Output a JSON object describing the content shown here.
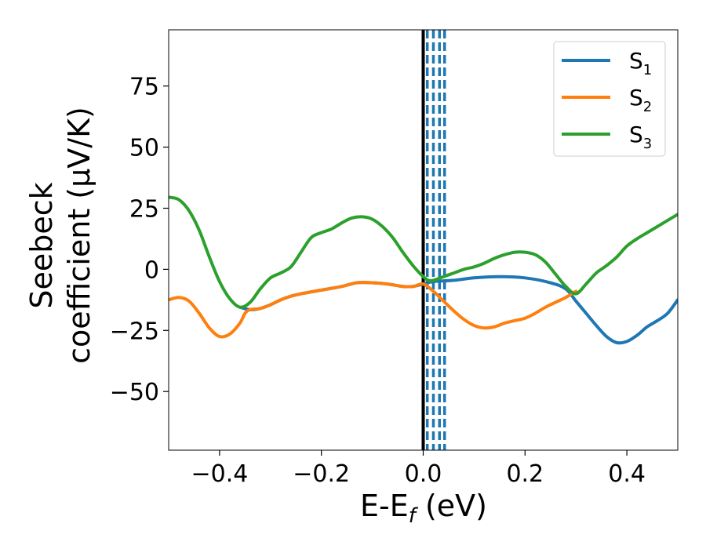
{
  "chart_data": {
    "type": "line",
    "xlabel_main": "E-E",
    "xlabel_sub": "f",
    "xlabel_unit": " (eV)",
    "ylabel_line1": "Seebeck",
    "ylabel_line2": "coefficient  (μV/K)",
    "xlim": [
      -0.5,
      0.5
    ],
    "ylim": [
      -74,
      98
    ],
    "xticks": [
      -0.4,
      -0.2,
      0.0,
      0.2,
      0.4
    ],
    "xtick_labels": [
      "−0.4",
      "−0.2",
      "0.0",
      "0.2",
      "0.4"
    ],
    "yticks": [
      -50,
      -25,
      0,
      25,
      50,
      75
    ],
    "ytick_labels": [
      "−50",
      "−25",
      "0",
      "25",
      "50",
      "75"
    ],
    "grid": false,
    "legend_position": "top-right",
    "fermi_line": {
      "x": 0.0,
      "color": "#000000"
    },
    "dashed_lines": {
      "x": [
        0.008,
        0.02,
        0.032,
        0.042
      ],
      "color": "#1f77b4"
    },
    "series": [
      {
        "name": "S",
        "sub": "1",
        "color": "#1f77b4",
        "points": [
          [
            -0.36,
            -15.5
          ],
          [
            -0.34,
            -16.5
          ],
          [
            -0.32,
            -16
          ],
          [
            -0.3,
            -14.5
          ],
          [
            -0.28,
            -12.5
          ],
          [
            -0.26,
            -11
          ],
          [
            -0.24,
            -10
          ],
          [
            -0.2,
            -8.5
          ],
          [
            -0.16,
            -7
          ],
          [
            -0.13,
            -5.5
          ],
          [
            -0.1,
            -5.5
          ],
          [
            -0.07,
            -6
          ],
          [
            -0.04,
            -7
          ],
          [
            -0.02,
            -7
          ],
          [
            0.0,
            -6
          ],
          [
            0.02,
            -5
          ],
          [
            0.06,
            -4.5
          ],
          [
            0.1,
            -3.5
          ],
          [
            0.15,
            -3
          ],
          [
            0.2,
            -3.5
          ],
          [
            0.25,
            -5.5
          ],
          [
            0.28,
            -8
          ],
          [
            0.3,
            -13
          ],
          [
            0.32,
            -18
          ],
          [
            0.34,
            -23
          ],
          [
            0.36,
            -27.5
          ],
          [
            0.38,
            -30
          ],
          [
            0.4,
            -29.5
          ],
          [
            0.42,
            -27
          ],
          [
            0.44,
            -23.5
          ],
          [
            0.46,
            -21
          ],
          [
            0.48,
            -18
          ],
          [
            0.5,
            -12.5
          ]
        ]
      },
      {
        "name": "S",
        "sub": "2",
        "color": "#ff7f0e",
        "points": [
          [
            -0.5,
            -12.5
          ],
          [
            -0.48,
            -11.5
          ],
          [
            -0.46,
            -13
          ],
          [
            -0.44,
            -18
          ],
          [
            -0.42,
            -24
          ],
          [
            -0.4,
            -27.5
          ],
          [
            -0.38,
            -26.5
          ],
          [
            -0.36,
            -22
          ],
          [
            -0.35,
            -18
          ],
          [
            -0.34,
            -16.5
          ],
          [
            -0.32,
            -16
          ],
          [
            -0.3,
            -14.5
          ],
          [
            -0.28,
            -12.5
          ],
          [
            -0.26,
            -11
          ],
          [
            -0.24,
            -10
          ],
          [
            -0.2,
            -8.5
          ],
          [
            -0.16,
            -7
          ],
          [
            -0.13,
            -5.5
          ],
          [
            -0.1,
            -5.5
          ],
          [
            -0.07,
            -6
          ],
          [
            -0.04,
            -7
          ],
          [
            -0.02,
            -7
          ],
          [
            0.0,
            -6
          ],
          [
            0.02,
            -9
          ],
          [
            0.04,
            -13
          ],
          [
            0.06,
            -17
          ],
          [
            0.08,
            -20.5
          ],
          [
            0.1,
            -23
          ],
          [
            0.12,
            -24
          ],
          [
            0.14,
            -23.5
          ],
          [
            0.16,
            -22
          ],
          [
            0.18,
            -21
          ],
          [
            0.2,
            -20
          ],
          [
            0.22,
            -18
          ],
          [
            0.24,
            -15.5
          ],
          [
            0.26,
            -13.5
          ],
          [
            0.28,
            -11.5
          ],
          [
            0.3,
            -9
          ]
        ]
      },
      {
        "name": "S",
        "sub": "3",
        "color": "#2ca02c",
        "points": [
          [
            -0.5,
            29.5
          ],
          [
            -0.48,
            28.5
          ],
          [
            -0.46,
            24
          ],
          [
            -0.44,
            16
          ],
          [
            -0.42,
            5
          ],
          [
            -0.4,
            -5
          ],
          [
            -0.38,
            -12
          ],
          [
            -0.36,
            -15.5
          ],
          [
            -0.34,
            -13.5
          ],
          [
            -0.32,
            -8
          ],
          [
            -0.3,
            -3.5
          ],
          [
            -0.28,
            -1.5
          ],
          [
            -0.26,
            1
          ],
          [
            -0.24,
            7
          ],
          [
            -0.22,
            13
          ],
          [
            -0.2,
            15
          ],
          [
            -0.18,
            16.5
          ],
          [
            -0.16,
            19
          ],
          [
            -0.14,
            21
          ],
          [
            -0.12,
            21.5
          ],
          [
            -0.1,
            20.5
          ],
          [
            -0.08,
            17.5
          ],
          [
            -0.06,
            13
          ],
          [
            -0.04,
            7
          ],
          [
            -0.02,
            1.5
          ],
          [
            0.0,
            -3
          ],
          [
            0.01,
            -4.5
          ],
          [
            0.02,
            -4.5
          ],
          [
            0.04,
            -3
          ],
          [
            0.06,
            -1.5
          ],
          [
            0.08,
            0
          ],
          [
            0.1,
            1
          ],
          [
            0.12,
            2.5
          ],
          [
            0.14,
            4.5
          ],
          [
            0.16,
            6
          ],
          [
            0.18,
            7
          ],
          [
            0.2,
            7
          ],
          [
            0.22,
            6
          ],
          [
            0.24,
            3
          ],
          [
            0.26,
            -2
          ],
          [
            0.28,
            -7
          ],
          [
            0.3,
            -10
          ],
          [
            0.32,
            -6
          ],
          [
            0.34,
            -1.5
          ],
          [
            0.36,
            1.5
          ],
          [
            0.38,
            5
          ],
          [
            0.4,
            9.5
          ],
          [
            0.42,
            12.5
          ],
          [
            0.44,
            15
          ],
          [
            0.46,
            17.5
          ],
          [
            0.48,
            20
          ],
          [
            0.5,
            22.5
          ]
        ]
      }
    ]
  }
}
